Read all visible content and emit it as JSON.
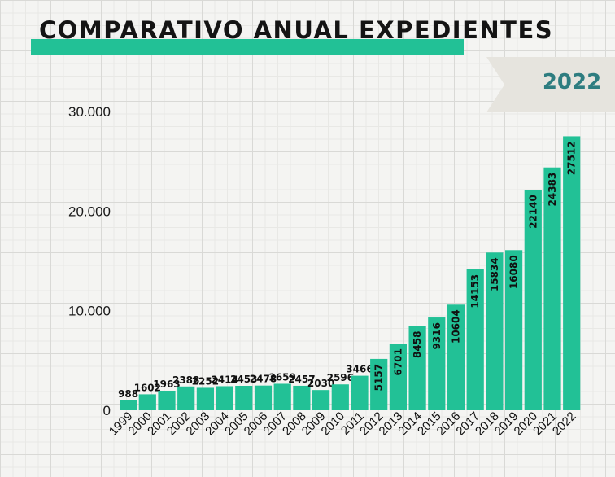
{
  "header": {
    "title": "COMPARATIVO ANUAL EXPEDIENTES",
    "year_badge": "2022"
  },
  "colors": {
    "bar": "#22c196",
    "title_bar": "#22c196",
    "year_text": "#2e7d80",
    "ribbon": "#e6e4de"
  },
  "chart_data": {
    "type": "bar",
    "title": "COMPARATIVO ANUAL EXPEDIENTES",
    "xlabel": "",
    "ylabel": "",
    "categories": [
      "1999",
      "2000",
      "2001",
      "2002",
      "2003",
      "2004",
      "2005",
      "2006",
      "2007",
      "2008",
      "2009",
      "2010",
      "2011",
      "2012",
      "2013",
      "2014",
      "2015",
      "2016",
      "2017",
      "2018",
      "2019",
      "2020",
      "2021",
      "2022"
    ],
    "values": [
      988,
      1602,
      1963,
      2388,
      2252,
      2414,
      2453,
      2478,
      2659,
      2457,
      2030,
      2596,
      3466,
      5157,
      6701,
      8458,
      9316,
      10604,
      14153,
      15834,
      16080,
      22140,
      24383,
      27512
    ],
    "data_labels": [
      "988",
      "1602",
      "1963",
      "2388",
      "2252",
      "2414",
      "2453",
      "2478",
      "2659",
      "2457",
      "2030",
      "2596",
      "3466",
      "5157",
      "6701",
      "8458",
      "9316",
      "10604",
      "14153",
      "15834",
      "16080",
      "22140",
      "24383",
      "27512"
    ],
    "ylim": [
      0,
      30000
    ],
    "yticks": [
      0,
      10000,
      20000,
      30000
    ],
    "ytick_labels": [
      "0",
      "10.000",
      "20.000",
      "30.000"
    ],
    "grid": true,
    "legend": "none"
  }
}
